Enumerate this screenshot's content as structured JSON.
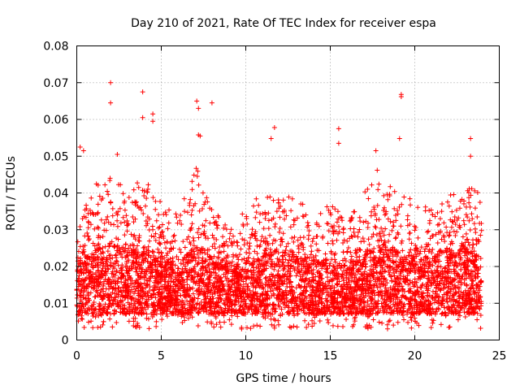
{
  "chart_data": {
    "type": "scatter",
    "title": "Day 210 of 2021, Rate Of TEC Index for receiver espa",
    "xlabel": "GPS time / hours",
    "ylabel": "ROTI / TECUs",
    "xlim": [
      0,
      25
    ],
    "ylim": [
      0,
      0.08
    ],
    "x_ticks": [
      0,
      5,
      10,
      15,
      20,
      25
    ],
    "y_ticks": [
      0,
      0.01,
      0.02,
      0.03,
      0.04,
      0.05,
      0.06,
      0.07,
      0.08
    ],
    "x_tick_labels": [
      "0",
      "5",
      "10",
      "15",
      "20",
      "25"
    ],
    "y_tick_labels": [
      "0",
      "0.01",
      "0.02",
      "0.03",
      "0.04",
      "0.05",
      "0.06",
      "0.07",
      "0.08"
    ],
    "grid": true,
    "marker": "plus",
    "series_color": "#ff0000",
    "notable_points": [
      {
        "x": 2.0,
        "y": 0.07
      },
      {
        "x": 3.9,
        "y": 0.0675
      },
      {
        "x": 7.1,
        "y": 0.065
      },
      {
        "x": 7.2,
        "y": 0.063
      },
      {
        "x": 8.0,
        "y": 0.0645
      },
      {
        "x": 2.0,
        "y": 0.0645
      },
      {
        "x": 4.5,
        "y": 0.0615
      },
      {
        "x": 4.5,
        "y": 0.0595
      },
      {
        "x": 3.9,
        "y": 0.0605
      },
      {
        "x": 19.2,
        "y": 0.0668
      },
      {
        "x": 19.2,
        "y": 0.0662
      },
      {
        "x": 15.5,
        "y": 0.0575
      },
      {
        "x": 11.7,
        "y": 0.0578
      },
      {
        "x": 23.3,
        "y": 0.0548
      },
      {
        "x": 19.1,
        "y": 0.0548
      },
      {
        "x": 7.2,
        "y": 0.0558
      },
      {
        "x": 7.3,
        "y": 0.0555
      },
      {
        "x": 11.5,
        "y": 0.0548
      },
      {
        "x": 0.2,
        "y": 0.0525
      },
      {
        "x": 0.4,
        "y": 0.0515
      },
      {
        "x": 2.4,
        "y": 0.0505
      },
      {
        "x": 17.7,
        "y": 0.0515
      },
      {
        "x": 23.3,
        "y": 0.05
      },
      {
        "x": 15.5,
        "y": 0.0535
      }
    ],
    "envelope": {
      "hours": [
        0,
        1,
        2,
        3,
        4,
        5,
        6,
        7,
        8,
        9,
        10,
        11,
        12,
        13,
        14,
        15,
        16,
        17,
        18,
        19,
        20,
        21,
        22,
        23,
        24
      ],
      "peak": [
        0.03,
        0.042,
        0.046,
        0.04,
        0.045,
        0.038,
        0.034,
        0.048,
        0.036,
        0.03,
        0.036,
        0.04,
        0.042,
        0.04,
        0.032,
        0.038,
        0.032,
        0.04,
        0.048,
        0.04,
        0.038,
        0.036,
        0.04,
        0.042,
        0.04
      ],
      "core_low": [
        0.007,
        0.007,
        0.007,
        0.007,
        0.007,
        0.007,
        0.007,
        0.007,
        0.007,
        0.007,
        0.007,
        0.007,
        0.007,
        0.007,
        0.007,
        0.007,
        0.007,
        0.007,
        0.007,
        0.007,
        0.007,
        0.007,
        0.007,
        0.007,
        0.007
      ],
      "core_high": [
        0.02,
        0.024,
        0.026,
        0.024,
        0.025,
        0.022,
        0.02,
        0.026,
        0.022,
        0.02,
        0.021,
        0.023,
        0.024,
        0.023,
        0.02,
        0.022,
        0.02,
        0.023,
        0.026,
        0.024,
        0.022,
        0.022,
        0.024,
        0.025,
        0.022
      ],
      "min": 0.003
    }
  }
}
